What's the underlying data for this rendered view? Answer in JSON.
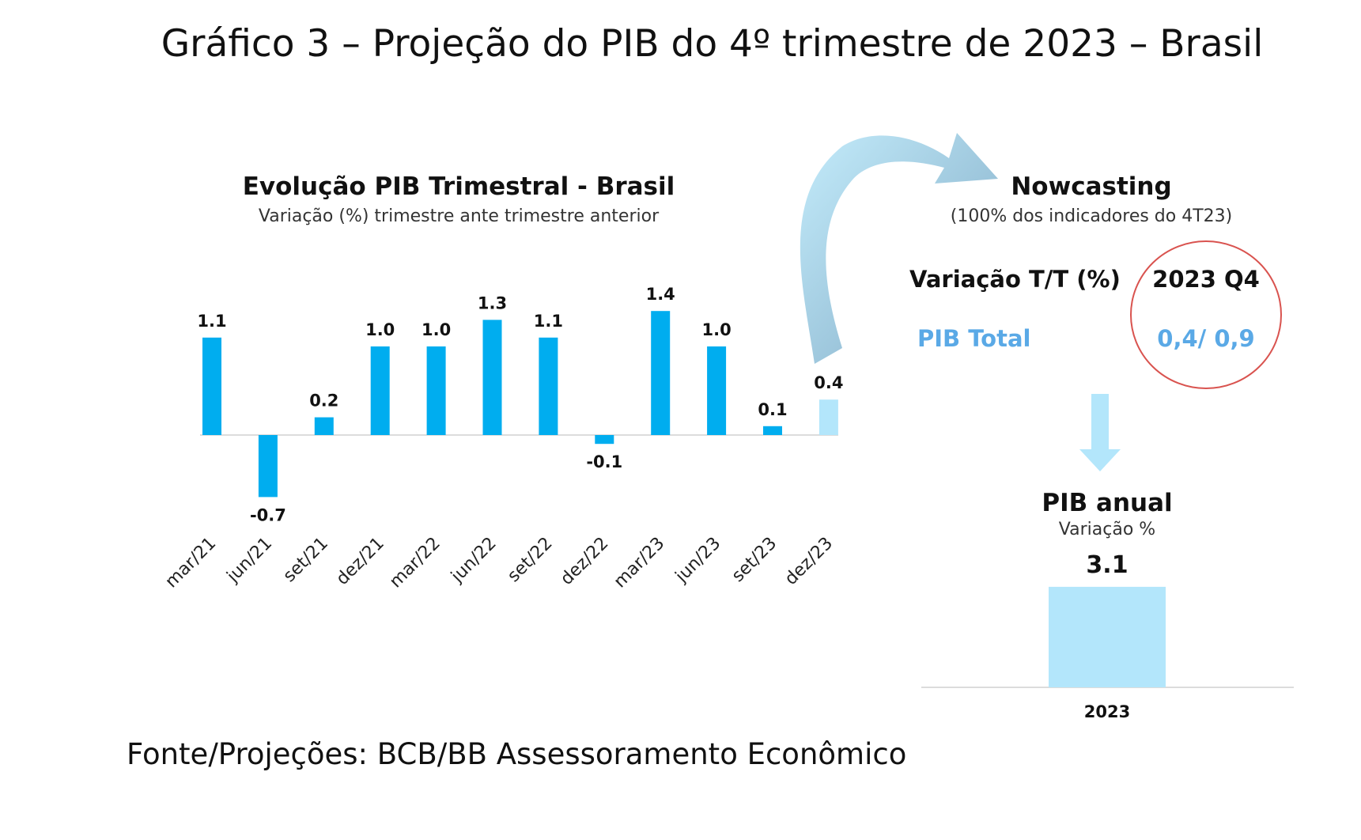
{
  "title": "Gráfico 3 – Projeção do PIB do 4º trimestre de 2023 – Brasil",
  "source": "Fonte/Projeções: BCB/BB Assessoramento Econômico",
  "chart_data": [
    {
      "type": "bar",
      "title": "Evolução PIB Trimestral - Brasil",
      "subtitle": "Variação (%) trimestre ante trimestre anterior",
      "categories": [
        "mar/21",
        "jun/21",
        "set/21",
        "dez/21",
        "mar/22",
        "jun/22",
        "set/22",
        "dez/22",
        "mar/23",
        "jun/23",
        "set/23",
        "dez/23"
      ],
      "values": [
        1.1,
        -0.7,
        0.2,
        1.0,
        1.0,
        1.3,
        1.1,
        -0.1,
        1.4,
        1.0,
        0.1,
        0.4
      ],
      "value_labels": [
        "1.1",
        "-0.7",
        "0.2",
        "1.0",
        "1.0",
        "1.3",
        "1.1",
        "-0.1",
        "1.4",
        "1.0",
        "0.1",
        "0.4"
      ],
      "projected_index": 11,
      "colors": {
        "actual": "#00adef",
        "projected": "#b3e6fb"
      }
    },
    {
      "type": "bar",
      "title": "PIB anual",
      "subtitle": "Variação %",
      "categories": [
        "2023"
      ],
      "values": [
        3.1
      ],
      "value_labels": [
        "3.1"
      ],
      "colors": {
        "bar": "#b3e6fb"
      }
    }
  ],
  "nowcasting": {
    "title": "Nowcasting",
    "subtitle": "(100% dos indicadores do 4T23)",
    "row_header": "Variação T/T (%)",
    "column_header": "2023 Q4",
    "row_label": "PIB Total",
    "row_value": "0,4/ 0,9",
    "highlight_color": "#d9534f",
    "label_color": "#5aa9e6"
  },
  "arrow_color": "#7fb6d6"
}
